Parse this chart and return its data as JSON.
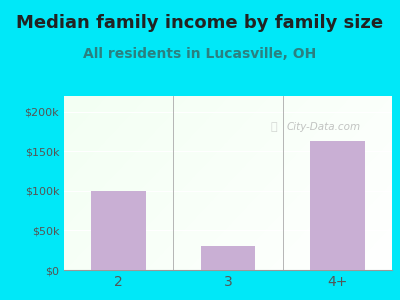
{
  "title": "Median family income by family size",
  "subtitle": "All residents in Lucasville, OH",
  "categories": [
    "2",
    "3",
    "4+"
  ],
  "values": [
    100000,
    30000,
    163000
  ],
  "bar_color": "#c9afd4",
  "title_fontsize": 13,
  "subtitle_fontsize": 10,
  "title_color": "#222222",
  "subtitle_color": "#2a8080",
  "tick_color": "#555555",
  "background_outer": "#00e8f8",
  "ylim": [
    0,
    220000
  ],
  "yticks": [
    0,
    50000,
    100000,
    150000,
    200000
  ],
  "ytick_labels": [
    "$0",
    "$50k",
    "$100k",
    "$150k",
    "$200k"
  ],
  "watermark": "City-Data.com"
}
